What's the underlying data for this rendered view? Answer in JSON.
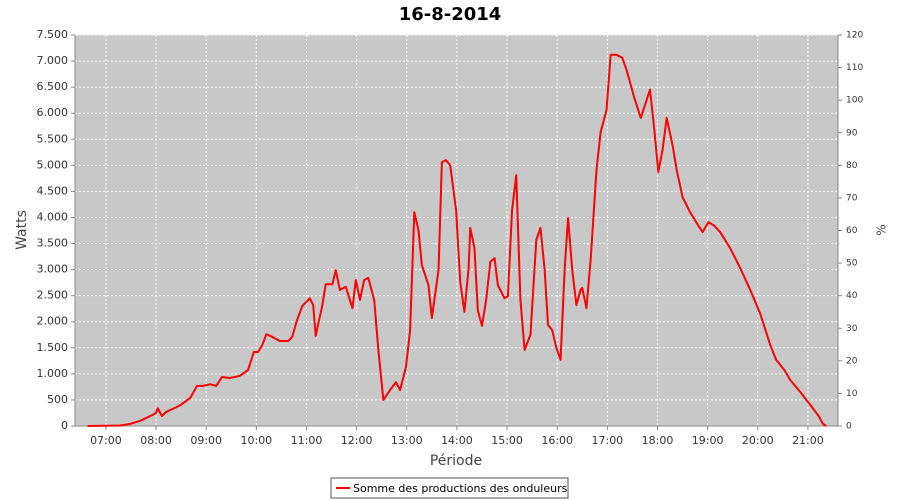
{
  "chart_data": {
    "type": "line",
    "title": "16-8-2014",
    "x_label": "Période",
    "y_label": "Watts",
    "y2_label": "%",
    "x": [
      "06:38",
      "07:17",
      "07:29",
      "07:41",
      "07:53",
      "08:00",
      "08:02",
      "08:07",
      "08:12",
      "08:23",
      "08:29",
      "08:41",
      "08:49",
      "08:56",
      "09:05",
      "09:12",
      "09:19",
      "09:28",
      "09:40",
      "09:50",
      "09:57",
      "10:02",
      "10:07",
      "10:12",
      "10:19",
      "10:28",
      "10:38",
      "10:43",
      "10:48",
      "10:55",
      "11:04",
      "11:08",
      "11:11",
      "11:19",
      "11:23",
      "11:31",
      "11:35",
      "11:40",
      "11:47",
      "11:55",
      "11:59",
      "12:04",
      "12:09",
      "12:14",
      "12:21",
      "12:26",
      "12:32",
      "12:40",
      "12:47",
      "12:52",
      "12:59",
      "13:04",
      "13:09",
      "13:14",
      "13:18",
      "13:26",
      "13:30",
      "13:38",
      "13:42",
      "13:47",
      "13:52",
      "13:59",
      "14:04",
      "14:09",
      "14:14",
      "14:16",
      "14:21",
      "14:25",
      "14:30",
      "14:35",
      "14:40",
      "14:45",
      "14:49",
      "14:57",
      "15:01",
      "15:06",
      "15:11",
      "15:16",
      "15:21",
      "15:28",
      "15:35",
      "15:40",
      "15:45",
      "15:49",
      "15:54",
      "15:59",
      "16:04",
      "16:09",
      "16:13",
      "16:18",
      "16:23",
      "16:28",
      "16:30",
      "16:35",
      "16:40",
      "16:47",
      "16:52",
      "16:59",
      "17:04",
      "17:11",
      "17:18",
      "17:23",
      "17:32",
      "17:40",
      "17:47",
      "17:51",
      "17:56",
      "18:01",
      "18:06",
      "18:11",
      "18:18",
      "18:23",
      "18:30",
      "18:39",
      "18:49",
      "18:54",
      "19:01",
      "19:08",
      "19:15",
      "19:27",
      "19:39",
      "19:51",
      "20:03",
      "20:15",
      "20:22",
      "20:32",
      "20:39",
      "20:51",
      "21:03",
      "21:13",
      "21:18",
      "21:22"
    ],
    "series": [
      {
        "name": "Somme des productions des onduleurs",
        "color": "#ff0000",
        "values": [
          0,
          10,
          40,
          100,
          190,
          250,
          340,
          190,
          270,
          350,
          400,
          540,
          770,
          770,
          800,
          770,
          940,
          920,
          960,
          1070,
          1420,
          1420,
          1550,
          1760,
          1710,
          1630,
          1630,
          1710,
          2000,
          2300,
          2450,
          2320,
          1730,
          2320,
          2720,
          2720,
          2990,
          2610,
          2670,
          2260,
          2800,
          2420,
          2800,
          2840,
          2420,
          1460,
          500,
          690,
          840,
          690,
          1130,
          1840,
          4100,
          3760,
          3090,
          2700,
          2070,
          2990,
          5060,
          5100,
          5000,
          4140,
          2760,
          2190,
          3030,
          3800,
          3410,
          2220,
          1920,
          2420,
          3150,
          3220,
          2700,
          2450,
          2490,
          4140,
          4810,
          2420,
          1460,
          1750,
          3570,
          3800,
          2990,
          1940,
          1840,
          1500,
          1270,
          3030,
          3990,
          2990,
          2320,
          2610,
          2650,
          2260,
          3180,
          4910,
          5640,
          6060,
          7120,
          7120,
          7060,
          6830,
          6310,
          5910,
          6250,
          6450,
          5720,
          4870,
          5290,
          5910,
          5390,
          4910,
          4390,
          4100,
          3840,
          3720,
          3910,
          3840,
          3720,
          3410,
          3030,
          2610,
          2150,
          1550,
          1270,
          1070,
          880,
          650,
          400,
          190,
          40,
          0
        ]
      }
    ],
    "xlim": [
      "06:23",
      "21:36"
    ],
    "xticks": [
      "07:00",
      "08:00",
      "09:00",
      "10:00",
      "11:00",
      "12:00",
      "13:00",
      "14:00",
      "15:00",
      "16:00",
      "17:00",
      "18:00",
      "19:00",
      "20:00",
      "21:00"
    ],
    "ylim": [
      0,
      7500
    ],
    "yticks": [
      0,
      500,
      {
        "value": 1000,
        "label": "1.000"
      },
      {
        "value": 1500,
        "label": "1.500"
      },
      {
        "value": 2000,
        "label": "2.000"
      },
      {
        "value": 2500,
        "label": "2.500"
      },
      {
        "value": 3000,
        "label": "3.000"
      },
      {
        "value": 3500,
        "label": "3.500"
      },
      {
        "value": 4000,
        "label": "4.000"
      },
      {
        "value": 4500,
        "label": "4.500"
      },
      {
        "value": 5000,
        "label": "5.000"
      },
      {
        "value": 5500,
        "label": "5.500"
      },
      {
        "value": 6000,
        "label": "6.000"
      },
      {
        "value": 6500,
        "label": "6.500"
      },
      {
        "value": 7000,
        "label": "7.000"
      },
      {
        "value": 7500,
        "label": "7.500"
      }
    ],
    "y2lim": [
      0,
      120
    ],
    "y2ticks": [
      0,
      10,
      20,
      30,
      40,
      50,
      60,
      70,
      80,
      90,
      100,
      110,
      120
    ],
    "grid": true,
    "legend": "bottom"
  }
}
